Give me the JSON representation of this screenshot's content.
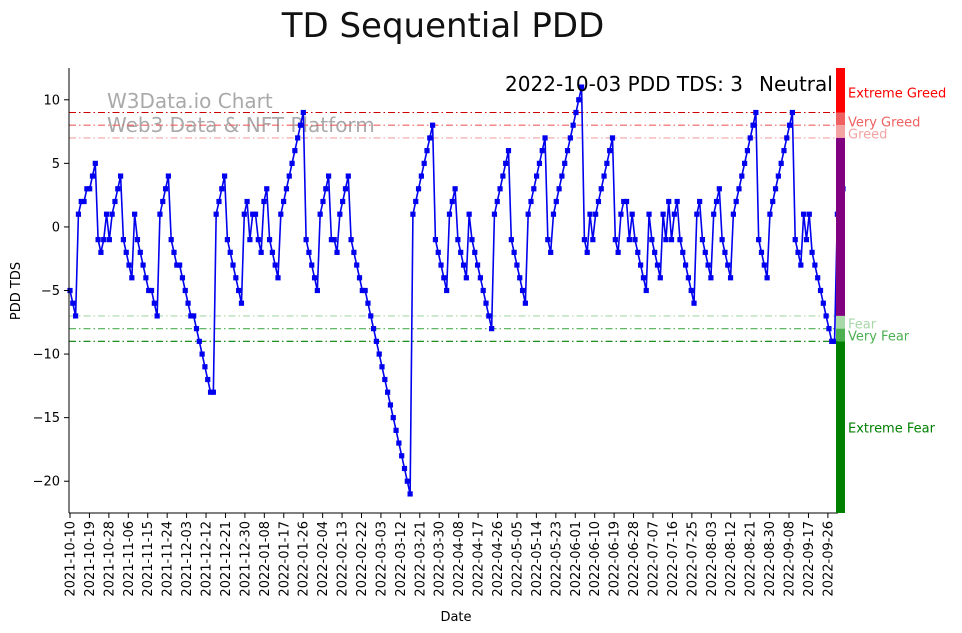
{
  "chart_data": {
    "type": "line",
    "title": "TD Sequential PDD",
    "xlabel": "Date",
    "ylabel": "PDD TDS",
    "ylim": [
      -22.5,
      12.5
    ],
    "y_ticks": [
      10,
      5,
      0,
      -5,
      -10,
      -15,
      -20
    ],
    "status": {
      "text": "2022-10-03 PDD TDS: 3",
      "label": "Neutral",
      "label_color": "#800080"
    },
    "watermark": {
      "line1": "W3Data.io Chart",
      "line2": "Web3 Data & NFT Platform"
    },
    "x_ticks": [
      "2021-10-10",
      "2021-10-19",
      "2021-10-28",
      "2021-11-06",
      "2021-11-15",
      "2021-11-24",
      "2021-12-03",
      "2021-12-12",
      "2021-12-21",
      "2021-12-30",
      "2022-01-08",
      "2022-01-17",
      "2022-01-26",
      "2022-02-04",
      "2022-02-13",
      "2022-02-22",
      "2022-03-03",
      "2022-03-12",
      "2022-03-21",
      "2022-03-30",
      "2022-04-08",
      "2022-04-17",
      "2022-04-26",
      "2022-05-05",
      "2022-05-14",
      "2022-05-23",
      "2022-06-01",
      "2022-06-10",
      "2022-06-19",
      "2022-06-28",
      "2022-07-07",
      "2022-07-16",
      "2022-07-25",
      "2022-08-03",
      "2022-08-12",
      "2022-08-21",
      "2022-08-30",
      "2022-09-08",
      "2022-09-17",
      "2022-09-26"
    ],
    "x_start": "2021-10-10",
    "x_end": "2022-10-03",
    "series": [
      {
        "name": "PDD TDS",
        "color": "#0000ee",
        "values": [
          -5,
          -6,
          -7,
          1,
          2,
          2,
          3,
          3,
          4,
          5,
          -1,
          -2,
          -1,
          1,
          -1,
          1,
          2,
          3,
          4,
          -1,
          -2,
          -3,
          -4,
          1,
          -1,
          -2,
          -3,
          -4,
          -5,
          -5,
          -6,
          -7,
          1,
          2,
          3,
          4,
          -1,
          -2,
          -3,
          -3,
          -4,
          -5,
          -6,
          -7,
          -7,
          -8,
          -9,
          -10,
          -11,
          -12,
          -13,
          -13,
          1,
          2,
          3,
          4,
          -1,
          -2,
          -3,
          -4,
          -5,
          -6,
          1,
          2,
          -1,
          1,
          1,
          -1,
          -2,
          2,
          3,
          -1,
          -2,
          -3,
          -4,
          1,
          2,
          3,
          4,
          5,
          6,
          7,
          8,
          9,
          -1,
          -2,
          -3,
          -4,
          -5,
          1,
          2,
          3,
          4,
          -1,
          -1,
          -2,
          1,
          2,
          3,
          4,
          -1,
          -2,
          -3,
          -4,
          -5,
          -5,
          -6,
          -7,
          -8,
          -9,
          -10,
          -11,
          -12,
          -13,
          -14,
          -15,
          -16,
          -17,
          -18,
          -19,
          -20,
          -21,
          1,
          2,
          3,
          4,
          5,
          6,
          7,
          8,
          -1,
          -2,
          -3,
          -4,
          -5,
          1,
          2,
          3,
          -1,
          -2,
          -3,
          -4,
          1,
          -1,
          -2,
          -3,
          -4,
          -5,
          -6,
          -7,
          -8,
          1,
          2,
          3,
          4,
          5,
          6,
          -1,
          -2,
          -3,
          -4,
          -5,
          -6,
          1,
          2,
          3,
          4,
          5,
          6,
          7,
          -1,
          -2,
          1,
          2,
          3,
          4,
          5,
          6,
          7,
          8,
          9,
          10,
          11,
          -1,
          -2,
          1,
          -1,
          1,
          2,
          3,
          4,
          5,
          6,
          7,
          -1,
          -2,
          1,
          2,
          2,
          -1,
          1,
          -1,
          -2,
          -3,
          -4,
          -5,
          1,
          -1,
          -2,
          -3,
          -4,
          1,
          -1,
          2,
          -1,
          1,
          2,
          -1,
          -2,
          -3,
          -4,
          -5,
          -6,
          1,
          2,
          -1,
          -2,
          -3,
          -4,
          1,
          2,
          3,
          -1,
          -2,
          -3,
          -4,
          1,
          2,
          3,
          4,
          5,
          6,
          7,
          8,
          9,
          -1,
          -2,
          -3,
          -4,
          1,
          2,
          3,
          4,
          5,
          6,
          7,
          8,
          9,
          -1,
          -2,
          -3,
          1,
          -1,
          1,
          -2,
          -3,
          -4,
          -5,
          -6,
          -7,
          -8,
          -9,
          -9,
          1,
          2,
          3
        ]
      }
    ],
    "zones": [
      {
        "label": "Extreme Greed",
        "level": 9,
        "color": "#ff0000",
        "line_color": "#cc0000"
      },
      {
        "label": "Very Greed",
        "level": 8,
        "color": "#f06060",
        "line_color": "#f06060"
      },
      {
        "label": "Greed",
        "level": 7,
        "color": "#f4a3a3",
        "line_color": "#f4a3a3"
      },
      {
        "label": "Fear",
        "level": -7,
        "color": "#a8d8a8",
        "line_color": "#a8d8a8"
      },
      {
        "label": "Very Fear",
        "level": -8,
        "color": "#4caf50",
        "line_color": "#4caf50"
      },
      {
        "label": "Extreme Fear",
        "level": -9,
        "color": "#008000",
        "line_color": "#008000"
      }
    ],
    "side_bar": [
      {
        "from": 12.5,
        "to": 9,
        "color": "#ff0000"
      },
      {
        "from": 9,
        "to": 8,
        "color": "#f06060"
      },
      {
        "from": 8,
        "to": 7,
        "color": "#f4a3a3"
      },
      {
        "from": 7,
        "to": -7,
        "color": "#800080"
      },
      {
        "from": -7,
        "to": -8,
        "color": "#a8d8a8"
      },
      {
        "from": -8,
        "to": -9,
        "color": "#4caf50"
      },
      {
        "from": -9,
        "to": -22.5,
        "color": "#008000"
      }
    ]
  }
}
